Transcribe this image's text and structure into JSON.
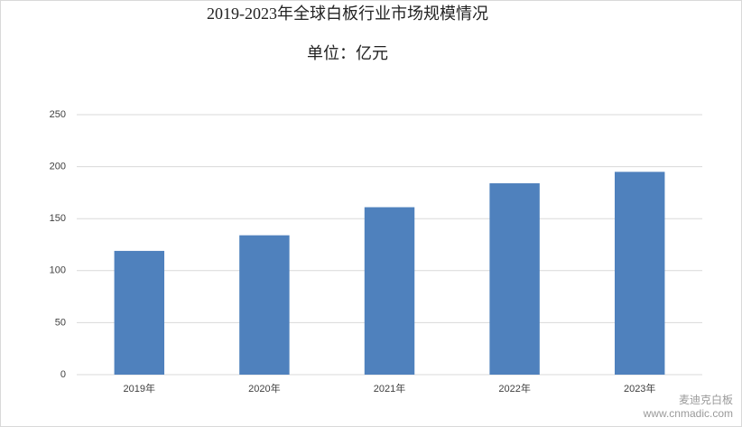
{
  "chart_data": {
    "type": "bar",
    "title": "2019-2023年全球白板行业市场规模情况",
    "subtitle": "单位：亿元",
    "categories": [
      "2019年",
      "2020年",
      "2021年",
      "2022年",
      "2023年"
    ],
    "values": [
      119,
      134,
      161,
      184,
      195
    ],
    "color": "#4f81bd",
    "ylim": [
      0,
      250
    ],
    "yticks": [
      0,
      50,
      100,
      150,
      200,
      250
    ],
    "grid": true,
    "watermark": {
      "brand": "麦迪克白板",
      "url": "www.cnmadic.com"
    }
  }
}
